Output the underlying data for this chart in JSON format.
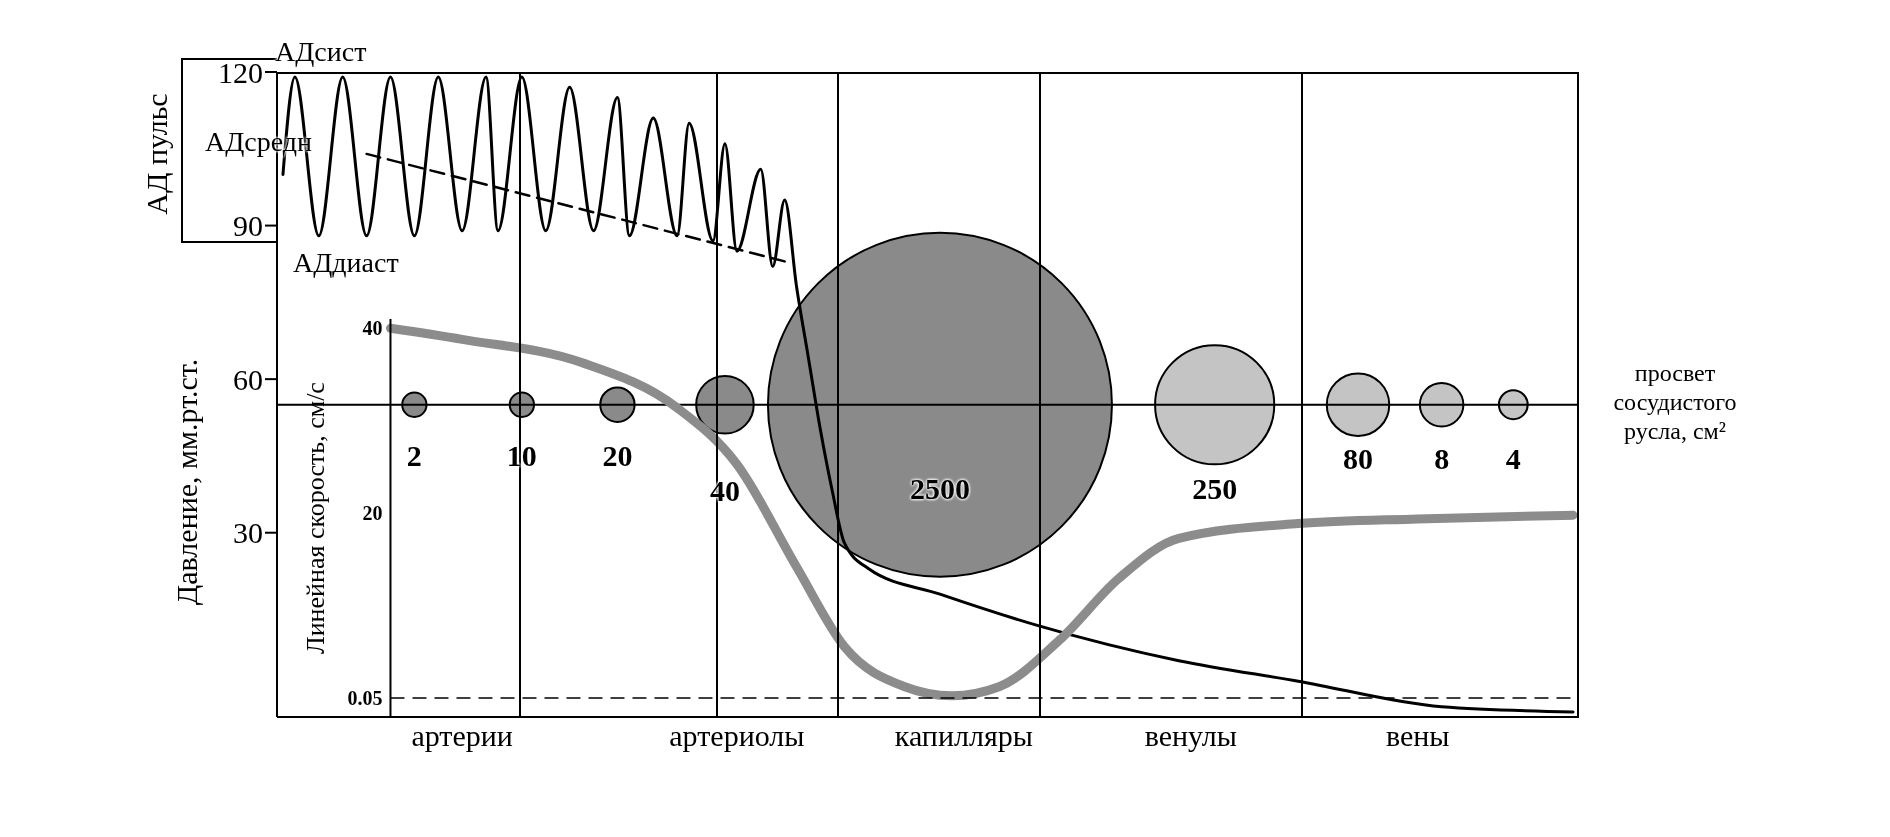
{
  "chart_data": {
    "type": "line",
    "categories": [
      null,
      null,
      null,
      null,
      null,
      null,
      null,
      null,
      null,
      null,
      null,
      null,
      null,
      null,
      null,
      "артерии",
      null,
      null,
      null,
      null,
      null,
      null,
      null,
      null,
      null,
      null,
      null,
      null,
      null,
      null,
      null,
      null,
      null,
      null,
      null,
      null,
      null,
      null,
      "артериолы",
      null,
      null,
      null,
      null,
      null,
      null,
      null,
      null,
      null,
      null,
      null,
      null,
      null,
      null,
      null,
      null,
      null,
      null,
      "капилляры",
      null,
      null,
      null,
      null,
      null,
      null,
      null,
      null,
      null,
      null,
      null,
      null,
      null,
      null,
      null,
      null,
      null,
      null,
      "венулы",
      null,
      null,
      null,
      null,
      null,
      null,
      null,
      null,
      null,
      null,
      null,
      null,
      null,
      null,
      null,
      null,
      null,
      null,
      "вены",
      null,
      null,
      null,
      null,
      null,
      null,
      null,
      null,
      null,
      null,
      null,
      null,
      null
    ],
    "ylim": [
      -6,
      120
    ],
    "yticks": [
      30,
      60,
      90,
      120
    ],
    "y2lim": [
      -2,
      41
    ],
    "y2ticks": [
      0.05,
      20,
      40
    ],
    "ylabel": "Давление, мм.рт.ст.",
    "y2label": "Линейная скорость, см/с",
    "series": [
      {
        "color": "#000000",
        "values": [
          100,
          119,
          null,
          88,
          null,
          119,
          null,
          88,
          null,
          119,
          null,
          88,
          null,
          119,
          null,
          89,
          null,
          119,
          89,
          null,
          119,
          null,
          89,
          null,
          117,
          null,
          89,
          null,
          115,
          88,
          null,
          111,
          null,
          88,
          110,
          null,
          87,
          106,
          85,
          null,
          101,
          82,
          95,
          78,
          64,
          50,
          38,
          28,
          null,
          23,
          null,
          null,
          null,
          null,
          null,
          18,
          null,
          null,
          null,
          null,
          null,
          null,
          null,
          12,
          null,
          null,
          null,
          null,
          null,
          null,
          null,
          null,
          null,
          null,
          null,
          5,
          null,
          null,
          null,
          null,
          null,
          null,
          null,
          null,
          null,
          1,
          null,
          null,
          null,
          null,
          null,
          null,
          null,
          null,
          null,
          null,
          null,
          -4,
          null,
          null,
          null,
          null,
          null,
          null,
          null,
          null,
          null,
          null,
          -5
        ]
      },
      {
        "name": "АДсредн",
        "color": "#000000",
        "line_style": "dashed",
        "values": [
          null,
          null,
          null,
          null,
          null,
          null,
          null,
          104,
          null,
          null,
          null,
          null,
          null,
          null,
          null,
          null,
          null,
          null,
          null,
          null,
          null,
          null,
          null,
          null,
          null,
          null,
          null,
          null,
          null,
          null,
          null,
          null,
          null,
          null,
          null,
          null,
          null,
          null,
          null,
          null,
          null,
          null,
          83,
          null,
          null,
          null,
          null,
          null,
          null,
          null,
          null,
          null,
          null,
          null,
          null,
          null,
          null,
          null,
          null,
          null,
          null,
          null,
          null,
          null,
          null,
          null,
          null,
          null,
          null,
          null,
          null,
          null,
          null,
          null,
          null,
          null,
          null,
          null,
          null,
          null,
          null,
          null,
          null,
          null,
          null,
          null,
          null,
          null,
          null,
          null,
          null,
          null,
          null,
          null,
          null,
          null,
          null,
          null,
          null,
          null,
          null,
          null,
          null,
          null,
          null,
          null,
          null,
          null,
          null
        ]
      },
      {
        "axis": "y2",
        "color": "#8c8c8c",
        "values": [
          null,
          null,
          null,
          null,
          null,
          null,
          null,
          null,
          null,
          40,
          null,
          null,
          null,
          null,
          null,
          38.8,
          null,
          null,
          null,
          null,
          null,
          null,
          null,
          null,
          null,
          36.3,
          null,
          null,
          null,
          null,
          null,
          null,
          null,
          31.4,
          null,
          null,
          null,
          null,
          25.3,
          null,
          null,
          null,
          null,
          14.2,
          null,
          null,
          null,
          5.6,
          null,
          null,
          null,
          null,
          1.3,
          null,
          null,
          null,
          0.3,
          null,
          null,
          null,
          1.3,
          null,
          null,
          null,
          null,
          6.3,
          null,
          null,
          null,
          null,
          13,
          null,
          null,
          null,
          null,
          17.3,
          null,
          null,
          null,
          null,
          null,
          null,
          null,
          null,
          null,
          18.9,
          null,
          null,
          null,
          null,
          null,
          null,
          null,
          null,
          null,
          19.4,
          null,
          null,
          null,
          null,
          null,
          null,
          null,
          null,
          null,
          null,
          null,
          null,
          19.8
        ]
      },
      {
        "type": "bubble",
        "color": "#8a8a8a",
        "values": [
          null,
          null,
          null,
          null,
          null,
          null,
          null,
          null,
          null,
          null,
          null,
          55,
          null,
          null,
          null,
          null,
          null,
          null,
          null,
          null,
          55,
          null,
          null,
          null,
          null,
          null,
          null,
          null,
          55,
          null,
          null,
          null,
          null,
          null,
          null,
          null,
          null,
          55,
          null,
          null,
          null,
          null,
          null,
          null,
          null,
          null,
          null,
          null,
          null,
          null,
          null,
          null,
          null,
          null,
          null,
          55,
          null,
          null,
          null,
          null,
          null,
          null,
          null,
          null,
          null,
          null,
          null,
          null,
          null,
          null,
          null,
          null,
          null,
          null,
          null,
          null,
          null,
          null,
          null,
          null,
          null,
          null,
          null,
          null,
          null,
          null,
          null,
          null,
          null,
          null,
          null,
          null,
          null,
          null,
          null,
          null,
          null,
          null,
          null,
          null,
          null,
          null,
          null,
          null,
          null,
          null,
          null,
          null,
          null
        ],
        "sizes": [
          null,
          null,
          null,
          null,
          null,
          null,
          null,
          null,
          null,
          null,
          null,
          0.005,
          null,
          null,
          null,
          null,
          null,
          null,
          null,
          null,
          0.005,
          null,
          null,
          null,
          null,
          null,
          null,
          null,
          0.01,
          null,
          null,
          null,
          null,
          null,
          null,
          null,
          null,
          0.028,
          null,
          null,
          null,
          null,
          null,
          null,
          null,
          null,
          null,
          null,
          null,
          null,
          null,
          null,
          null,
          null,
          null,
          1,
          null,
          null,
          null,
          null,
          null,
          null,
          null,
          null,
          null,
          null,
          null,
          null,
          null,
          null,
          null,
          null,
          null,
          null,
          null,
          null,
          null,
          null,
          null,
          null,
          null,
          null,
          null,
          null,
          null,
          null,
          null,
          null,
          null,
          null,
          null,
          null,
          null,
          null,
          null,
          null,
          null,
          null,
          null,
          null,
          null,
          null,
          null,
          null,
          null,
          null,
          null,
          null,
          null
        ]
      },
      {
        "type": "bubble",
        "color": "#c4c4c4",
        "values": [
          null,
          null,
          null,
          null,
          null,
          null,
          null,
          null,
          null,
          null,
          null,
          null,
          null,
          null,
          null,
          null,
          null,
          null,
          null,
          null,
          null,
          null,
          null,
          null,
          null,
          null,
          null,
          null,
          null,
          null,
          null,
          null,
          null,
          null,
          null,
          null,
          null,
          null,
          null,
          null,
          null,
          null,
          null,
          null,
          null,
          null,
          null,
          null,
          null,
          null,
          null,
          null,
          null,
          null,
          null,
          null,
          null,
          null,
          null,
          null,
          null,
          null,
          null,
          null,
          null,
          null,
          null,
          null,
          null,
          null,
          null,
          null,
          null,
          null,
          null,
          null,
          null,
          null,
          55,
          null,
          null,
          null,
          null,
          null,
          null,
          null,
          null,
          null,
          null,
          null,
          55,
          null,
          null,
          null,
          null,
          null,
          null,
          55,
          null,
          null,
          null,
          null,
          null,
          55,
          null,
          null,
          null,
          null,
          null
        ],
        "sizes": [
          null,
          null,
          null,
          null,
          null,
          null,
          null,
          null,
          null,
          null,
          null,
          null,
          null,
          null,
          null,
          null,
          null,
          null,
          null,
          null,
          null,
          null,
          null,
          null,
          null,
          null,
          null,
          null,
          null,
          null,
          null,
          null,
          null,
          null,
          null,
          null,
          null,
          null,
          null,
          null,
          null,
          null,
          null,
          null,
          null,
          null,
          null,
          null,
          null,
          null,
          null,
          null,
          null,
          null,
          null,
          null,
          null,
          null,
          null,
          null,
          null,
          null,
          null,
          null,
          null,
          null,
          null,
          null,
          null,
          null,
          null,
          null,
          null,
          null,
          null,
          null,
          null,
          null,
          0.12,
          null,
          null,
          null,
          null,
          null,
          null,
          null,
          null,
          null,
          null,
          null,
          0.033,
          null,
          null,
          null,
          null,
          null,
          null,
          0.016,
          null,
          null,
          null,
          null,
          null,
          0.007,
          null,
          null,
          null,
          null,
          null
        ]
      }
    ],
    "ref_lines": [
      {
        "axis": "y",
        "value": 55,
        "label": "просвет сосудистого русла, см²"
      },
      {
        "axis": "y2",
        "value": 0.05,
        "line_style": "dashed"
      }
    ],
    "annotations": [
      "АД пульс",
      "АДсист",
      "АДдиаст",
      "2",
      "10",
      "20",
      "40",
      "2500",
      "250",
      "80",
      "8",
      "4"
    ],
    "legend": false
  }
}
